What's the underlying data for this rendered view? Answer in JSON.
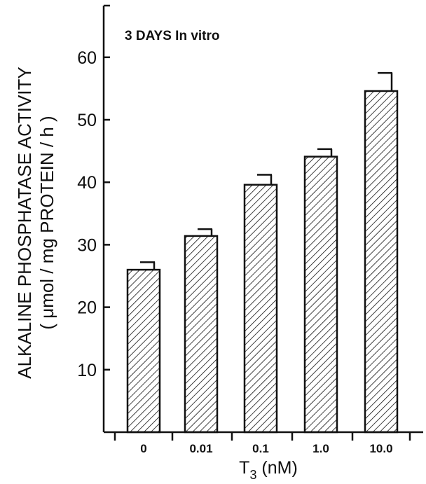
{
  "chart_data": {
    "type": "bar",
    "annotation": "3 DAYS In vitro",
    "ylabel_line1": "ALKALINE PHOSPHATASE ACTIVITY",
    "ylabel_line2": "( μmol / mg PROTEIN / h )",
    "xlabel_main": "T",
    "xlabel_sub": "3",
    "xlabel_unit": "(nM)",
    "categories": [
      "0",
      "0.01",
      "0.1",
      "1.0",
      "10.0"
    ],
    "values": [
      26,
      31.4,
      39.6,
      44.1,
      54.6
    ],
    "errors": [
      1.2,
      1.1,
      1.6,
      1.2,
      2.9
    ],
    "ylim": [
      0,
      70
    ],
    "yticks": [
      10,
      20,
      30,
      40,
      50,
      60
    ],
    "bar_pattern": "diagonal-hatch",
    "grid": false,
    "colors": {
      "ink": "#111111",
      "background": "#ffffff"
    }
  }
}
